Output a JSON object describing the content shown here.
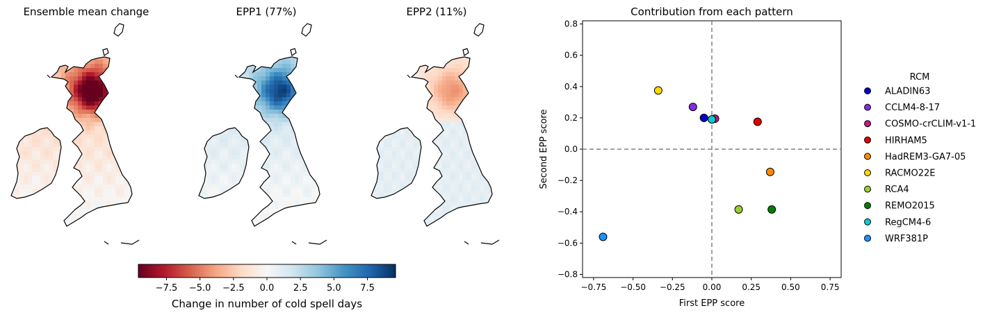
{
  "maps": [
    {
      "title": "Ensemble mean change",
      "sign": -1,
      "scale": 1.0
    },
    {
      "title": "EPP1 (77%)",
      "sign": 1,
      "scale": 0.8
    },
    {
      "title": "EPP2 (11%)",
      "sign": 1,
      "scale": 0.35
    }
  ],
  "colorbar": {
    "label": "Change in number of cold spell days",
    "ticks": [
      "−7.5",
      "−5.0",
      "−2.5",
      "0.0",
      "2.5",
      "5.0",
      "7.5"
    ],
    "tick_values": [
      -7.5,
      -5.0,
      -2.5,
      0.0,
      2.5,
      5.0,
      7.5
    ],
    "range": [
      -9.6,
      9.6
    ],
    "colormap": "RdBu",
    "colors": [
      "#67001f",
      "#b2182b",
      "#d6604d",
      "#f4a582",
      "#fddbc7",
      "#f7f7f7",
      "#d1e5f0",
      "#92c5de",
      "#4393c3",
      "#2166ac",
      "#053061"
    ]
  },
  "chart_data": {
    "type": "scatter",
    "title": "Contribution from each pattern",
    "xlabel": "First EPP score",
    "ylabel": "Second EPP score",
    "xlim": [
      -0.82,
      0.82
    ],
    "ylim": [
      -0.82,
      0.82
    ],
    "x_ticks": [
      "−0.75",
      "−0.50",
      "−0.25",
      "0.00",
      "0.25",
      "0.50",
      "0.75"
    ],
    "x_tick_values": [
      -0.75,
      -0.5,
      -0.25,
      0.0,
      0.25,
      0.5,
      0.75
    ],
    "y_ticks": [
      "−0.8",
      "−0.6",
      "−0.4",
      "−0.2",
      "0.0",
      "0.2",
      "0.4",
      "0.6",
      "0.8"
    ],
    "y_tick_values": [
      -0.8,
      -0.6,
      -0.4,
      -0.2,
      0.0,
      0.2,
      0.4,
      0.6,
      0.8
    ],
    "reference_lines": {
      "x": 0.0,
      "y": 0.0,
      "style": "dashed",
      "color": "#808080"
    },
    "legend_title": "RCM",
    "legend_position": "right",
    "series": [
      {
        "name": "ALADIN63",
        "color": "#0000cd",
        "x": -0.05,
        "y": 0.2
      },
      {
        "name": "CCLM4-8-17",
        "color": "#8a2be2",
        "x": -0.12,
        "y": 0.27
      },
      {
        "name": "COSMO-crCLIM-v1-1",
        "color": "#c71585",
        "x": 0.02,
        "y": 0.195
      },
      {
        "name": "HIRHAM5",
        "color": "#e00000",
        "x": 0.29,
        "y": 0.175
      },
      {
        "name": "HadREM3-GA7-05",
        "color": "#ff8c00",
        "x": 0.37,
        "y": -0.145
      },
      {
        "name": "RACMO22E",
        "color": "#ffd700",
        "x": -0.34,
        "y": 0.375
      },
      {
        "name": "RCA4",
        "color": "#9acd32",
        "x": 0.17,
        "y": -0.385
      },
      {
        "name": "REMO2015",
        "color": "#008000",
        "x": 0.38,
        "y": -0.385
      },
      {
        "name": "RegCM4-6",
        "color": "#00ced1",
        "x": 0.0,
        "y": 0.19
      },
      {
        "name": "WRF381P",
        "color": "#1e90ff",
        "x": -0.69,
        "y": -0.56
      }
    ]
  }
}
